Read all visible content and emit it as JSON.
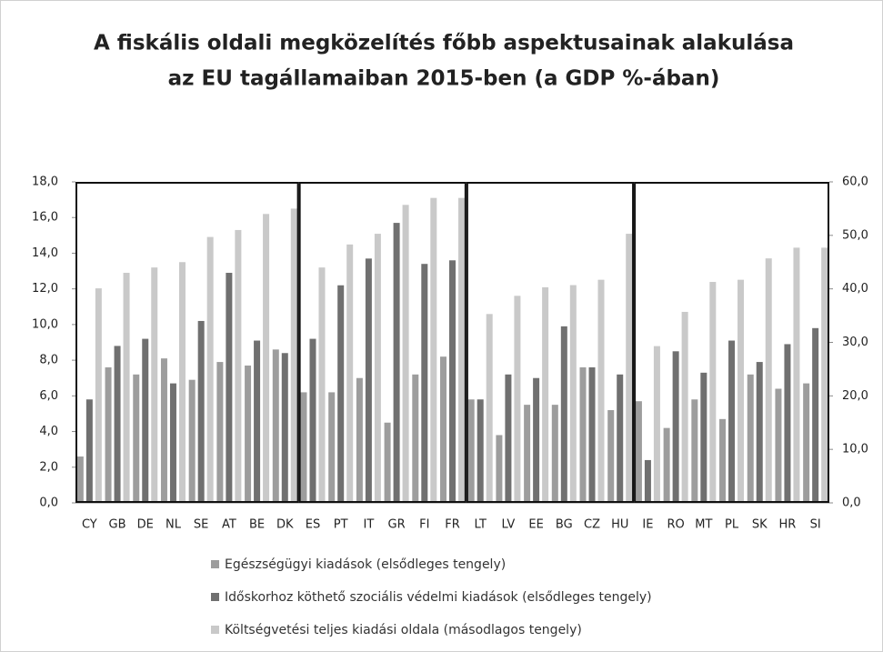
{
  "chart_data": {
    "type": "bar",
    "title": [
      "A fiskális oldali megközelítés főbb aspektusainak alakulása",
      "az EU tagállamaiban 2015-ben (a GDP %-ában)"
    ],
    "categories": [
      "CY",
      "GB",
      "DE",
      "NL",
      "SE",
      "AT",
      "BE",
      "DK",
      "ES",
      "PT",
      "IT",
      "GR",
      "FI",
      "FR",
      "LT",
      "LV",
      "EE",
      "BG",
      "CZ",
      "HU",
      "IE",
      "RO",
      "MT",
      "PL",
      "SK",
      "HR",
      "SI"
    ],
    "series": [
      {
        "name": "Egészségügyi kiadások (elsődleges tengely)",
        "color": "#9d9d9d",
        "values": [
          2.6,
          7.6,
          7.2,
          8.1,
          6.9,
          7.9,
          7.7,
          8.6,
          6.2,
          6.2,
          7.0,
          4.5,
          7.2,
          8.2,
          5.8,
          3.8,
          5.5,
          5.5,
          7.6,
          5.2,
          5.7,
          4.2,
          5.8,
          4.7,
          7.2,
          6.4,
          6.7
        ]
      },
      {
        "name": "Időskorhoz köthető szociális védelmi kiadások (elsődleges tengely)",
        "color": "#707070",
        "values": [
          5.8,
          8.8,
          9.2,
          6.7,
          10.2,
          12.9,
          9.1,
          8.4,
          9.2,
          12.2,
          13.7,
          15.7,
          13.4,
          13.6,
          5.8,
          7.2,
          7.0,
          9.9,
          7.6,
          7.2,
          2.4,
          8.5,
          7.3,
          9.1,
          7.9,
          8.9,
          9.8
        ]
      },
      {
        "name": "Költségvetési teljes kiadási oldala (másodlagos tengely)",
        "color": "#c9c9c9",
        "axis": "y2",
        "values": [
          40.1,
          43.0,
          44.0,
          45.0,
          49.7,
          51.0,
          54.0,
          55.0,
          44.0,
          48.3,
          50.3,
          55.7,
          57.0,
          57.0,
          35.3,
          38.7,
          40.3,
          40.7,
          41.7,
          50.3,
          29.3,
          35.7,
          41.3,
          41.7,
          45.7,
          47.7,
          47.7
        ]
      }
    ],
    "ylim": [
      0,
      18
    ],
    "yticks": [
      {
        "value": 0,
        "label": "0,0"
      },
      {
        "value": 2,
        "label": "2,0"
      },
      {
        "value": 4,
        "label": "4,0"
      },
      {
        "value": 6,
        "label": "6,0"
      },
      {
        "value": 8,
        "label": "8,0"
      },
      {
        "value": 10,
        "label": "10,0"
      },
      {
        "value": 12,
        "label": "12,0"
      },
      {
        "value": 14,
        "label": "14,0"
      },
      {
        "value": 16,
        "label": "16,0"
      },
      {
        "value": 18,
        "label": "18,0"
      }
    ],
    "y2lim": [
      0,
      60
    ],
    "y2ticks": [
      {
        "value": 0,
        "label": "0,0"
      },
      {
        "value": 10,
        "label": "10,0"
      },
      {
        "value": 20,
        "label": "20,0"
      },
      {
        "value": 30,
        "label": "30,0"
      },
      {
        "value": 40,
        "label": "40,0"
      },
      {
        "value": 50,
        "label": "50,0"
      },
      {
        "value": 60,
        "label": "60,0"
      }
    ]
  }
}
